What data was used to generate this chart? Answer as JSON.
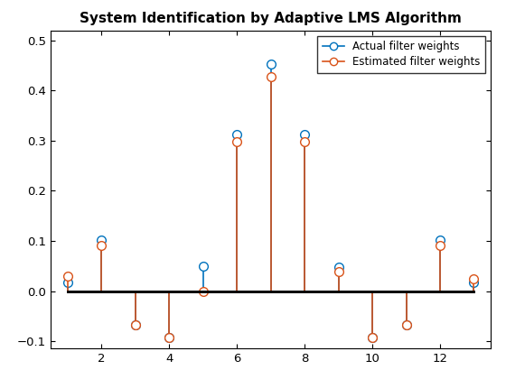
{
  "title": "System Identification by Adaptive LMS Algorithm",
  "actual_x": [
    1,
    2,
    3,
    4,
    5,
    6,
    7,
    8,
    9,
    10,
    11,
    12,
    13
  ],
  "actual_y": [
    0.018,
    0.102,
    -0.068,
    -0.093,
    0.05,
    0.312,
    0.452,
    0.312,
    0.047,
    -0.093,
    -0.068,
    0.102,
    0.018
  ],
  "estimated_x": [
    1,
    2,
    3,
    4,
    5,
    6,
    7,
    8,
    9,
    10,
    11,
    12,
    13
  ],
  "estimated_y": [
    0.03,
    0.091,
    -0.068,
    -0.093,
    0.0,
    0.298,
    0.428,
    0.298,
    0.038,
    -0.093,
    -0.068,
    0.091,
    0.025
  ],
  "actual_color": "#0072BD",
  "estimated_color": "#D95319",
  "xlim": [
    0.5,
    13.5
  ],
  "ylim": [
    -0.115,
    0.52
  ],
  "yticks": [
    -0.1,
    0.0,
    0.1,
    0.2,
    0.3,
    0.4,
    0.5
  ],
  "xticks": [
    2,
    4,
    6,
    8,
    10,
    12
  ],
  "legend_actual": "Actual filter weights",
  "legend_estimated": "Estimated filter weights",
  "figsize": [
    5.6,
    4.2
  ],
  "dpi": 100,
  "baseline_lw": 2.0,
  "stem_lw": 1.2,
  "marker_size": 7
}
